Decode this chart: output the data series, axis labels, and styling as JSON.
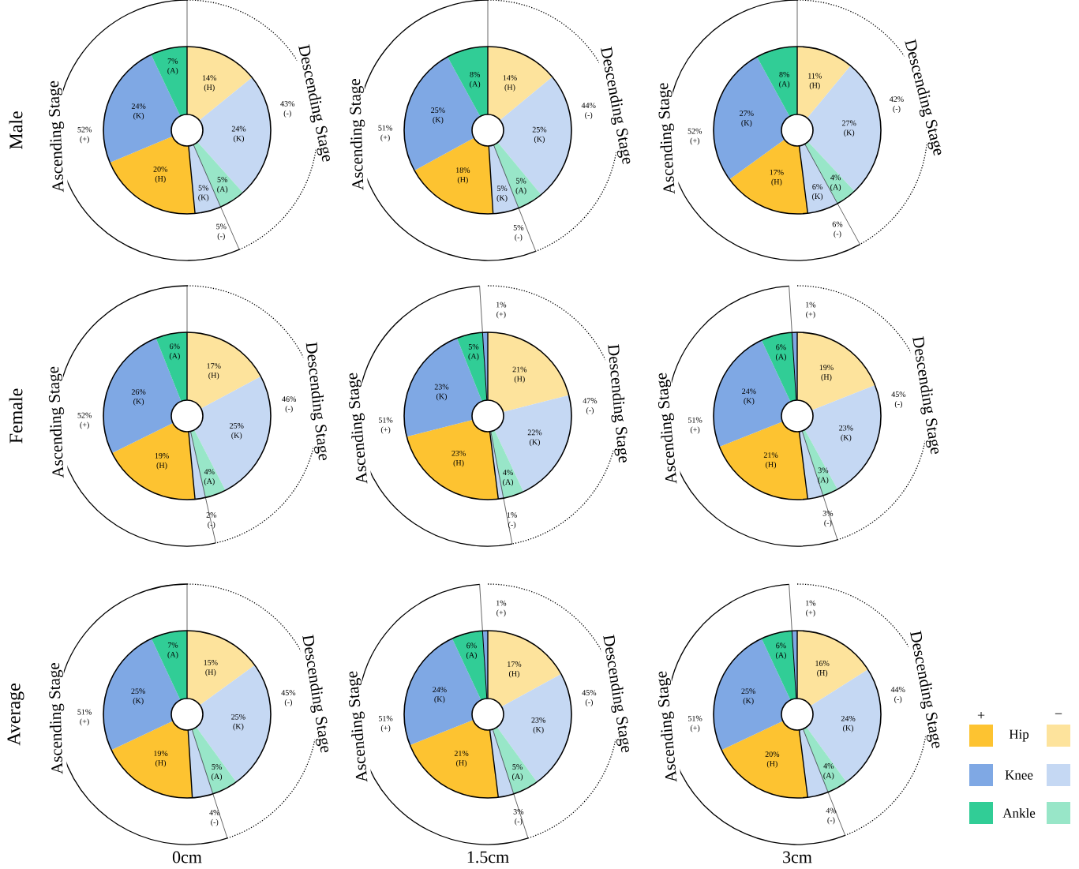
{
  "chart_data": [
    {
      "type": "donut",
      "ylabel": "Male",
      "categories": [
        "(H)",
        "(K)",
        "(A)",
        "(K)",
        "(H)",
        "(K)",
        "(A)"
      ],
      "values": [
        14,
        24,
        5,
        5,
        20,
        24,
        7
      ],
      "value_labels": [
        "14%",
        "24%",
        "5%",
        "5%",
        "20%",
        "24%",
        "7%"
      ],
      "colors": [
        "#fde39c",
        "#c5d8f3",
        "#98e6c8",
        "#c5d8f3",
        "#fdc331",
        "#7fa8e4",
        "#31cd96"
      ],
      "annotations": [
        "Descending Stage",
        "Ascending Stage",
        "43% (-)",
        "52% (+)",
        "5% (-)"
      ]
    },
    {
      "type": "donut",
      "categories": [
        "(H)",
        "(K)",
        "(A)",
        "(K)",
        "(H)",
        "(K)",
        "(A)"
      ],
      "values": [
        14,
        25,
        5,
        5,
        18,
        25,
        8
      ],
      "value_labels": [
        "14%",
        "25%",
        "5%",
        "5%",
        "18%",
        "25%",
        "8%"
      ],
      "colors": [
        "#fde39c",
        "#c5d8f3",
        "#98e6c8",
        "#c5d8f3",
        "#fdc331",
        "#7fa8e4",
        "#31cd96"
      ],
      "annotations": [
        "Descending Stage",
        "Ascending Stage",
        "44% (-)",
        "51% (+)",
        "5% (-)"
      ]
    },
    {
      "type": "donut",
      "categories": [
        "(H)",
        "(K)",
        "(A)",
        "(K)",
        "(H)",
        "(K)",
        "(A)"
      ],
      "values": [
        11,
        27,
        4,
        6,
        17,
        27,
        8
      ],
      "value_labels": [
        "11%",
        "27%",
        "4%",
        "6%",
        "17%",
        "27%",
        "8%"
      ],
      "colors": [
        "#fde39c",
        "#c5d8f3",
        "#98e6c8",
        "#c5d8f3",
        "#fdc331",
        "#7fa8e4",
        "#31cd96"
      ],
      "annotations": [
        "Descending Stage",
        "Ascending Stage",
        "42% (-)",
        "52% (+)",
        "6% (-)"
      ]
    },
    {
      "type": "donut",
      "ylabel": "Female",
      "categories": [
        "(H)",
        "(K)",
        "(A)",
        null,
        "(H)",
        "(K)",
        "(A)"
      ],
      "values": [
        17,
        25,
        4,
        2,
        19,
        26,
        6
      ],
      "value_labels": [
        "17%",
        "25%",
        "4%",
        null,
        "19%",
        "26%",
        "6%"
      ],
      "colors": [
        "#fde39c",
        "#c5d8f3",
        "#98e6c8",
        "#c5d8f3",
        "#fdc331",
        "#7fa8e4",
        "#31cd96"
      ],
      "annotations": [
        "Descending Stage",
        "Ascending Stage",
        "46% (-)",
        "52% (+)",
        "2% (-)"
      ]
    },
    {
      "type": "donut",
      "categories": [
        "(H)",
        "(K)",
        "(A)",
        null,
        "(H)",
        "(K)",
        "(A)",
        null
      ],
      "values": [
        21,
        22,
        4,
        1,
        23,
        23,
        5,
        1
      ],
      "value_labels": [
        "21%",
        "22%",
        "4%",
        null,
        "23%",
        "23%",
        "5%",
        null
      ],
      "colors": [
        "#fde39c",
        "#c5d8f3",
        "#98e6c8",
        "#c5d8f3",
        "#fdc331",
        "#7fa8e4",
        "#31cd96",
        "#7fa8e4"
      ],
      "annotations": [
        "Descending Stage",
        "Ascending Stage",
        "47% (-)",
        "51% (+)",
        "1% (-)",
        "1% (+)"
      ]
    },
    {
      "type": "donut",
      "categories": [
        "(H)",
        "(K)",
        "(A)",
        null,
        "(H)",
        "(K)",
        "(A)",
        null
      ],
      "values": [
        19,
        23,
        3,
        3,
        21,
        24,
        6,
        1
      ],
      "value_labels": [
        "19%",
        "23%",
        "3%",
        null,
        "21%",
        "24%",
        "6%",
        null
      ],
      "colors": [
        "#fde39c",
        "#c5d8f3",
        "#98e6c8",
        "#c5d8f3",
        "#fdc331",
        "#7fa8e4",
        "#31cd96",
        "#7fa8e4"
      ],
      "annotations": [
        "Descending Stage",
        "Ascending Stage",
        "45% (-)",
        "51% (+)",
        "3% (-)",
        "1% (+)"
      ]
    },
    {
      "type": "donut",
      "ylabel": "Average",
      "xlabel": "0cm",
      "categories": [
        "(H)",
        "(K)",
        "(A)",
        null,
        "(H)",
        "(K)",
        "(A)"
      ],
      "values": [
        15,
        25,
        5,
        4,
        19,
        25,
        7
      ],
      "value_labels": [
        "15%",
        "25%",
        "5%",
        null,
        "19%",
        "25%",
        "7%"
      ],
      "colors": [
        "#fde39c",
        "#c5d8f3",
        "#98e6c8",
        "#c5d8f3",
        "#fdc331",
        "#7fa8e4",
        "#31cd96"
      ],
      "annotations": [
        "Descending Stage",
        "Ascending Stage",
        "45% (-)",
        "51% (+)",
        "4% (-)"
      ]
    },
    {
      "type": "donut",
      "xlabel": "1.5cm",
      "categories": [
        "(H)",
        "(K)",
        "(A)",
        null,
        "(H)",
        "(K)",
        "(A)",
        null
      ],
      "values": [
        17,
        23,
        5,
        3,
        21,
        24,
        6,
        1
      ],
      "value_labels": [
        "17%",
        "23%",
        "5%",
        null,
        "21%",
        "24%",
        "6%",
        null
      ],
      "colors": [
        "#fde39c",
        "#c5d8f3",
        "#98e6c8",
        "#c5d8f3",
        "#fdc331",
        "#7fa8e4",
        "#31cd96",
        "#7fa8e4"
      ],
      "annotations": [
        "Descending Stage",
        "Ascending Stage",
        "45% (-)",
        "51% (+)",
        "3% (-)",
        "1% (+)"
      ]
    },
    {
      "type": "donut",
      "xlabel": "3cm",
      "categories": [
        "(H)",
        "(K)",
        "(A)",
        null,
        "(H)",
        "(K)",
        "(A)",
        null
      ],
      "values": [
        16,
        24,
        4,
        4,
        20,
        25,
        6,
        1
      ],
      "value_labels": [
        "16%",
        "24%",
        "4%",
        null,
        "20%",
        "25%",
        "6%",
        null
      ],
      "colors": [
        "#fde39c",
        "#c5d8f3",
        "#98e6c8",
        "#c5d8f3",
        "#fdc331",
        "#7fa8e4",
        "#31cd96",
        "#7fa8e4"
      ],
      "annotations": [
        "Descending Stage",
        "Ascending Stage",
        "44% (-)",
        "51% (+)",
        "4% (-)",
        "1% (+)"
      ]
    },
    {
      "type": "other",
      "annotations": [
        "+",
        "−",
        "Hip",
        "Knee",
        "Ankle"
      ],
      "colors": [
        "#fdc331",
        "#7fa8e4",
        "#31cd96",
        "#fde39c",
        "#c5d8f3",
        "#98e6c8"
      ]
    }
  ]
}
